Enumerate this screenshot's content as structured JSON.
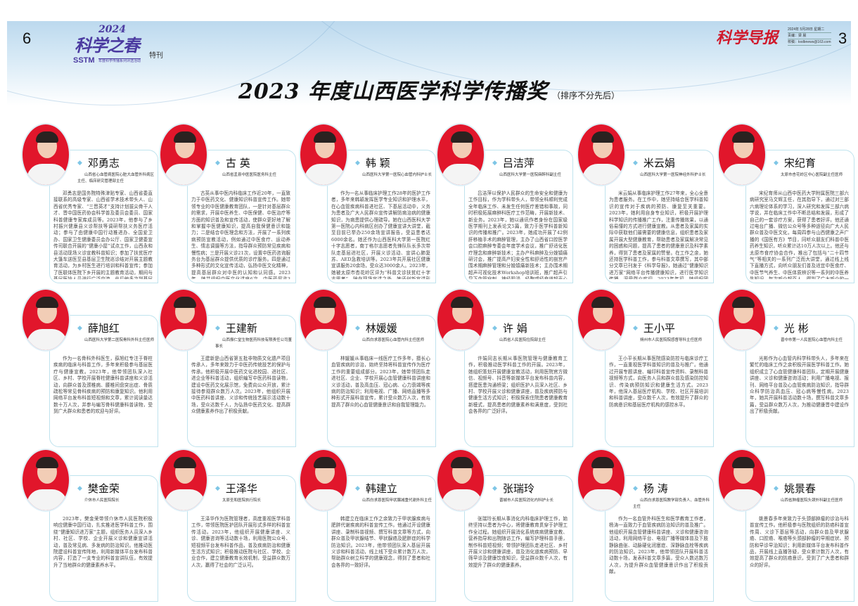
{
  "header": {
    "page_left": "6",
    "page_right": "3",
    "logo": {
      "year": "2024",
      "title": "科学之春",
      "sstm": "SSTM",
      "subtitle": "年度科学传播系列评选活动",
      "special": "特刊"
    },
    "masthead": "科学导报",
    "meta": [
      "2024年 5月28日  星期二",
      "责编：梁 晨",
      "校稿：kxdbnews@163.com"
    ],
    "title": "2023 年度山西医学科学传播奖",
    "note": "（排序不分先后）"
  },
  "colors": {
    "accent_red": "#e1162b",
    "frame_blue": "#bfe3ee",
    "logo_purple": "#4b3aa0"
  },
  "winners": [
    {
      "name": "邓勇志",
      "affiliation": "山西省心血管病医院心脏大血管外科病区主任、临床研究管理部主任",
      "bio": "邓勇志是国务院特殊津贴专家、山西省委直接联系的高级专家、山西省学术技术带头人、山西省优秀专家、“三晋英才”支持计划拔尖骨干人才、晋中国医药协会科学普及委员会委员、国家科普健康专家库成员等。2023年，他参与了乡村振兴健康县义诊帮扶等调研帮扶义务医疗活动；参与了由健康中国行动推进办、全国爱卫办、国家卫生健康委员会办公厅、国家卫健委宣传司联合开展的“健康小屋”试点工作，山西永和县活动现场义诊宣教科普知识；参加了扶贫医疗大篷车送医至县基层卫生院巡诊结对开展主题教育活动，为乡村医生进行培训和科普宣传；参加了医联体医院下乡开展的主题教育活动，期间与基层医护人员进行广泛交流，此后他多次到基层医院开展医疗帮扶活动，全面提升医疗卫生服务能力，使广大人民群众在家门口就能享受到高质量的诊疗服务。"
    },
    {
      "name": "古 英",
      "affiliation": "山西省盂县中医医院医务科主任",
      "bio": "古英从事中医内科临床工作近20年，一直致力于中医药文化、健康知识科普宣传工作。她带领专业的中医健康教育团队，一是针对基层群众的需求，开展中医养生、中医保健、中医治疗等方面的知识普及和宣传活动，使群众更好地了解和掌握中医健康知识，提高自我保健意识和能力；二是结合中医理念和方法，开展了一系列疾病预防宣教活动，例如通过中医食疗、运动养生、情志调摄等方法，指导群众预防常见疾病和慢性病；三是开展义诊21次，设置中医药咨询服务台为基层群众提供优质的诊疗服务。四是通过多种形式的文化宣传活动，弘扬中医文化精神，提高基层群众对中医的认知和认同感。2023年，她共组织中医文化讲座6次、中医药展览3次，编撰中医文化宣传手册十余种，开展3次中医文化进校园、8次中医进社区活动，让更多的人了解、认识了中医药文化。"
    },
    {
      "name": "韩 颖",
      "affiliation": "山西医科大学第一医院心血管内科护士长",
      "bio": "作为一名从事临床护理工作28年的医护工作者，多年来韩颖发挥医学专业知识和护理水平，在心血管疾病科普进社区、下基层活动中，义务为患者及广大人民群众宣传讲解防病治病的健康知识，为病患提供心理疏导。她在山西医科大学第一医院心内科病区创办了健康宣讲大讲堂，截至目前已举办250余场宣讲报告，受益患者达6000余名。她还作为山西医科大学第一医院红十字志愿者，南丁格尔志愿者先锋队队长多次带队走基层进社区，开展义诊活动、宣讲心肺复苏、AED急救培训等。2023年共开展社区健康宣讲服务20余场，受众达3000余人。2023年，她被太原市杏花岭区评为“科普文诊扶贫红十字志愿者”。除在现场宣讲之外，她还创新宣讲形式，在喜马拉雅APP开辟《关于高血压的那些事》的医学科学专题宣讲，发表关于冠心病、高血压、高血脂等内容，受到一致好评。截至目前已宣讲10余场，受众人群3000余人次。"
    },
    {
      "name": "吕洁萍",
      "affiliation": "山西医科大学第一医院麻醉科副主任",
      "bio": "吕洁萍以保护人民群众的生命安全和健康为工作目标，作为学科带头人，带领全科顺利完成全年临床工作、未发生任何医疗差错和事故，同时积极拓展麻醉科医疗工作范畴，开展新技术、新业务。2023年，她以通讯作者身份在国家级医学期刊上发表论文5篇，致力于医学科普新知识的传播和推广。2023年，她成功开展了42例肝移植手术的麻醉管理，主办了山西省口腔医学会口腔麻醉专委会年度学术会议，推广舒适化医疗理念和麻醉新技术；主办产科麻醉及分娩镇痛研讨会，推广提高产妇安全性和舒适性的剖宫产围术期麻醉管理和分娩镇痛新技术；主办围术期超声可视化技术Workshop培训班，推广超声引导下血管穿刺、神经阻滞、经胸或经食道超声心功能监测技术等。她还与首都医科大学附属北京友谊医院联合举办肝移植技术交流研讨会，推广肝移植手术的麻醉管理新技术。"
    },
    {
      "name": "米云娟",
      "affiliation": "山西医科大学第一医院神经外科护士长",
      "bio": "米云娟从事临床护理工作27年来，全心全意为患者服务。在工作中，她坚持结合医学科普知识的宣传对于疾病的预防、康复至关重要。2023年，她利用自身专业知识，积极开展护理科学知识的传播推广工作，注重传播效果，以通俗易懂的方式进行健康宣教。从患者及家属的实际中获取他们最需要的健康信息，组织患者及家属开展大型健康教育，帮助患者及家属解决常见的困惑和问题，提高了患者的健康意识及科学素养，得到了患者及家属的赞誉。在工作之余，她还持医学科普工作，参与科普文章撰写，其中部分文章已刊发于《科学导报》，她通过“健康知识进万家”网络平台传播健康知识，进行医学知识传播、深受群众欢迎。2023年年初，她组织团队，有序组织科室护理工作，解决工作中的实际问题，不断提高服务品质，保质保量完成各项工作任务，获山西省事迹典型荣誉的“抗击疫情嘉奖”及山西省人社厅和山西省卫健委联合授予的“山西省抗击新冠肺炎疫情先进个人”。"
    },
    {
      "name": "宋纪育",
      "affiliation": "太原市杏花岭区中心医院副主任医师",
      "bio": "宋纪育师从山西中医药大学附属医院三部六病研究室马文辉主任，在其指导下，通过对三部六病理论体系的学习，深入研究和发挥三部六病学说，并在临床工作中不断总结和发展，形成了自己的一套诊疗方案，获得了患者好评。他还通过电台广播、微信公众号等多种途径向广大人民群众普及中医文化，每周四参与山西健康之声广播的《国医有方》节目，同听众朋友们科普中医药养生知识，听众累计达10万人次以上。他还与太原市食疗协会合作，推出了包括与“二十四节气”等相关的一系列广泛而大讲堂，通过线上线下直播方式，向听众朋友们普及适宜中医食疗、中医节气养生、中医体质辨识等一系列的中医养生知识，每次听众超百人，得到了广大听众的一致好评。"
    },
    {
      "name": "薛旭红",
      "affiliation": "山西医科大学第二医院骨科外科主任医师",
      "bio": "作为一名骨科外科医生，薛旭红专注于脊柱疾病的临床与科普工作，多年来积极参与基层医疗与健康宣教。2023年，他带领团队深入社区、乡村、学校开展脊柱健康科普讲座和义诊活动，向群众普及颈椎病、腰椎间盘突出症、骨质疏松等常见骨科疾病的预防和康复知识。他利用网络平台发布科普短视频和文章，累计阅读量达数十万人次，并参与编写骨科健康科普读物，受到广大群众和患者的欢迎与好评。"
    },
    {
      "name": "王建新",
      "affiliation": "山西振仁堂生物医药科技有限责任公司董事长",
      "bio": "王建新是山西省第五批非物质文化遗产项目传承人，多年来致力于中医药传统技艺的保护与传承。他积极开展中医药文化进校园、进社区、进企业等科普活动，组织编写中医药科普读物，建设中医药文化展示馆，免费向公众开放，累计接待参观群众数万人次。2023年，他组织开展中医药科普讲座、义诊和传统技艺展示活动数十场，受众达数千人，为弘扬中医药文化、提高群众健康素养作出了积极贡献。"
    },
    {
      "name": "林媛媛",
      "affiliation": "山西白求恩医院心血管内科主任医师",
      "bio": "林媛媛从事临床一线医疗工作多年，擅长心血管疾病的诊治，始终坚持将科普宣传作为医疗工作的重要组成部分。2023年，她带领团队走进社区、企业、学校开展心血管健康科普讲座和义诊活动，普及高血压、冠心病、心力衰竭等疾病的防治知识；利用电视、广播、网络直播等多种形式开展科普宣传，累计受众数万人次，有效提高了群众的心血管健康意识和自我管理能力。"
    },
    {
      "name": "许 娟",
      "affiliation": "山西省人民医院住院部主任",
      "bio": "许娟同志长期从事医院管理与健康教育工作，积极推动医学科普工作的开展。2023年，她组织策划开展健康宣教活动，利用医院官方微信、视频号、抖音等新媒体平台发布科普内容，搭建医患沟通桥梁；组织医护人员深入社区、乡村、学校开展义诊和健康讲座，普及疾病预防与健康生活方式知识；积极探索住院患者健康教育新模式，提高患者的健康素养和满意度，受到社会各界的广泛好评。"
    },
    {
      "name": "王小平",
      "affiliation": "朔州市人民医院院感督导科主任医师",
      "bio": "王小平长期从事医院感染防控与临床诊疗工作，一直重视医学科普知识的普及与推广。他通过开展专题讲座、编印科普宣传资料、录制科普视频等方式，向医务人员和群众普及感染防控知识、传染病预防知识和健康生活方式。2023年，他深入基层医疗机构、学校、社区开展培训和科普讲座，受众数千人次，有效提升了群众的防病意识和基层医疗机构的感控水平。"
    },
    {
      "name": "光 彬",
      "affiliation": "晋中市第一人民医院心血管内科主任",
      "bio": "光彬作为心血管内科学科带头人，多年来在繁忙的临床工作之余积极开展医学科普工作。她组织成立了心血管健康科普团队，定期开展健康讲座、义诊和健康咨询活动；利用广播电视、报刊、网络平台普及心血管疾病防治知识，指导群众科学防治高血压、冠心病等慢性病。2023年，她共开展科普活动数十场，撰写科普文章多篇，受益群众数万人次，为推动健康晋中建设作出了积极贡献。"
    },
    {
      "name": "樊金荣",
      "affiliation": "介休市人民医院院长",
      "bio": "2023年，樊金荣带领介休市人民医院积极响应健康中国行动，扎实推进医学科普工作，围绕“健康知识进万家”主题，组织医务人员深入乡村、社区、学校、企业开展义诊和健康宣讲活动，普及常见病、多发病的防治知识。他推动医院建设科普宣传阵地，利用新媒体平台发布科普内容，打造了一支专业的科普宣讲队伍，有效提升了当地群众的健康素养水平。"
    },
    {
      "name": "王泽华",
      "affiliation": "太原圣和医院执行院长",
      "bio": "王泽华作为医院管理者，高度重视医学科普工作，带领医院医护团队开展形式多样的科普宣传活动。2023年，他组织开展健康讲座、义诊、健康咨询等活动数十场，利用医院公众号、短视频平台发布科普作品，普及疾病防治和健康生活方式知识；积极推动医院与社区、学校、企业合作，建立健康教育长效机制，受益群众数万人次，赢得了社会的广泛认可。"
    },
    {
      "name": "韩建立",
      "affiliation": "山西白求恩医院甲状腺减重代谢外科主任",
      "bio": "韩建立在临床工作之余致力于甲状腺疾病与肥胖代谢疾病的科普宣传工作。他通过开设健康讲座、录制科普视频、撰写科普文章等方式，向群众普及甲状腺结节、甲状腺癌及肥胖症的科学防治知识。2023年，他带领团队深入基层开展义诊和科普活动，线上线下受众累计数万人次，帮助群众树立科学的健康观念，得到了患者和社会各界的一致好评。"
    },
    {
      "name": "张瑞玲",
      "affiliation": "晋城市人民医院消化内科护士长",
      "bio": "张瑞玲长期从事消化内科临床护理工作，始终坚持以患者为中心，将健康教育贯穿于护理工作全过程。她组织开展消化系统疾病健康宣教、营养指导和出院随访工作，编写护理科普手册，制作科普短视频；带领护理团队走进社区、乡村开展义诊和健康讲座，普及消化道疾病预防、早筛早诊及健康饮食知识，受益群众数千人次，有效提升了群众的健康素养。"
    },
    {
      "name": "杨 涛",
      "affiliation": "山西白求恩医院教学部负责人、血管外科主任",
      "bio": "作为一名血管外科医生和医学教育工作者，杨涛一直致力于血管疾病防治知识的普及推广。他组织开展血管健康科普讲座、义诊和健康咨询活动，利用网络平台、电视广播等媒体普及下肢静脉曲张、动脉硬化闭塞症、深静脉血栓等疾病的防治知识。2023年，他带领团队开展科普活动数十场，发表科普文章多篇，受众人数达数万人次，为提升群众血管健康意识作出了积极贡献。"
    },
    {
      "name": "姚景春",
      "affiliation": "山西省肿瘤医院头颈外科副主任医师",
      "bio": "姚景春多年来致力于头颈部肿瘤的诊治与科普宣传工作。他积极参与医院组织的防癌科普宣传周、义诊下基层等活动，向群众普及甲状腺癌、口腔癌、喉癌等头颈部肿瘤的早期症状、预防和早诊早治知识；利用新媒体平台发布科普作品，开展线上直播答疑，受众累计数万人次，有效提高了群众的防癌意识，受到了广大患者和群众的好评。"
    }
  ]
}
